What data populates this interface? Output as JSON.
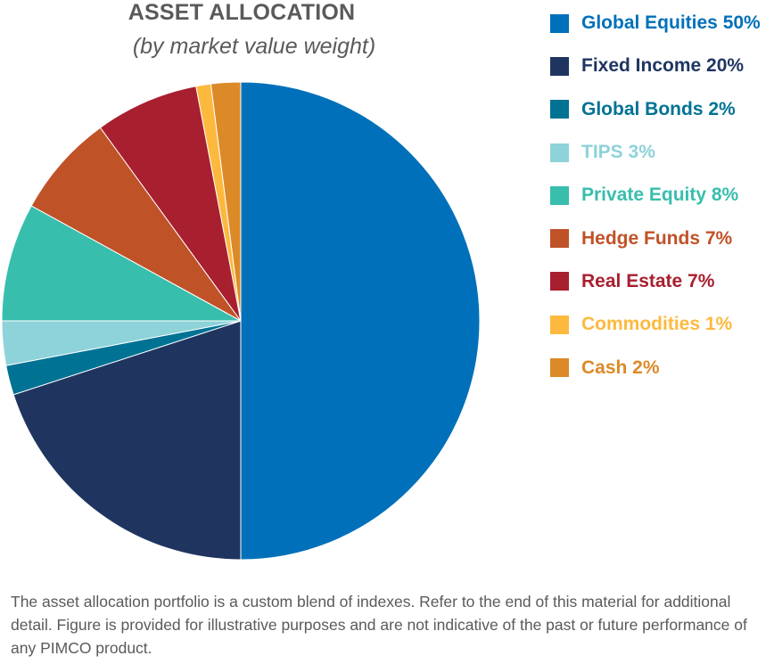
{
  "header": {
    "title": "ASSET ALLOCATION",
    "subtitle": "(by market value weight)"
  },
  "legend": [
    {
      "label": "Global Equities 50%",
      "color": "#0070BA"
    },
    {
      "label": "Fixed Income 20%",
      "color": "#1F3560"
    },
    {
      "label": "Global Bonds 2%",
      "color": "#007294"
    },
    {
      "label": "TIPS 3%",
      "color": "#8DD3D9"
    },
    {
      "label": "Private Equity 8%",
      "color": "#38BEAD"
    },
    {
      "label": "Hedge Funds 7%",
      "color": "#C05228"
    },
    {
      "label": "Real Estate 7%",
      "color": "#A81F2F"
    },
    {
      "label": "Commodities 1%",
      "color": "#FDB93E"
    },
    {
      "label": "Cash 2%",
      "color": "#DC8A28"
    }
  ],
  "footnote": "The asset allocation portfolio is a custom blend of indexes. Refer to the end of this material for additional detail. Figure is provided for illustrative purposes and are not indicative of the past or future performance of any PIMCO product.",
  "chart_data": {
    "type": "pie",
    "title": "ASSET ALLOCATION",
    "subtitle": "(by market value weight)",
    "categories": [
      "Global Equities",
      "Fixed Income",
      "Global Bonds",
      "TIPS",
      "Private Equity",
      "Hedge Funds",
      "Real Estate",
      "Commodities",
      "Cash"
    ],
    "values": [
      50,
      20,
      2,
      3,
      8,
      7,
      7,
      1,
      2
    ],
    "units": "%",
    "colors": [
      "#0070BA",
      "#1F3560",
      "#007294",
      "#8DD3D9",
      "#38BEAD",
      "#C05228",
      "#A81F2F",
      "#FDB93E",
      "#DC8A28"
    ],
    "start_angle": "12 o'clock",
    "direction": "clockwise",
    "legend_position": "right"
  }
}
